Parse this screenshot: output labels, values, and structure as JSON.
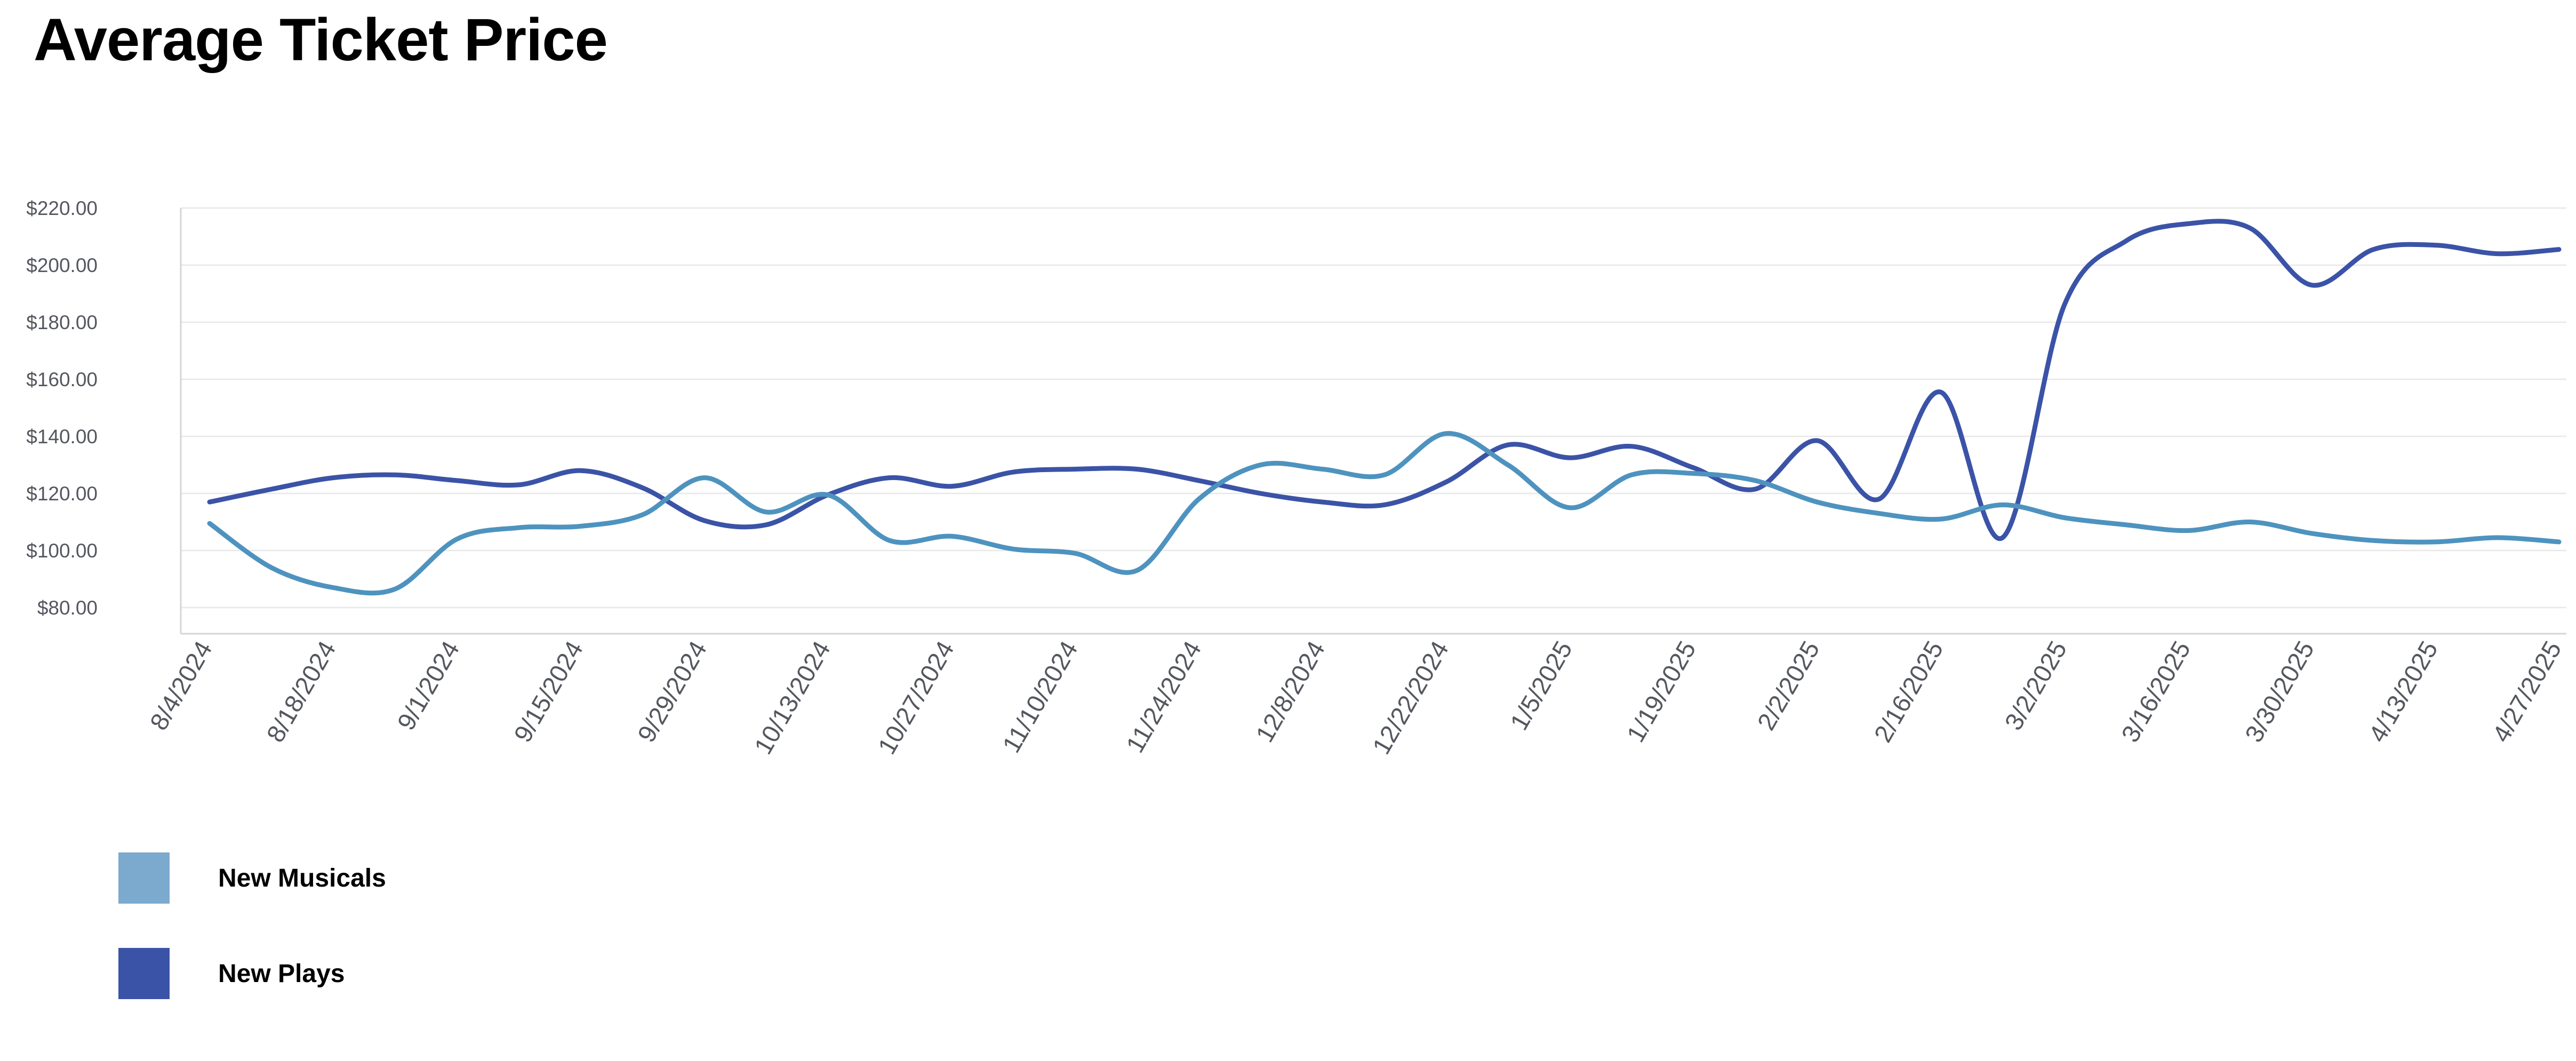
{
  "title": "Average Ticket Price",
  "chart_data": {
    "type": "line",
    "x": [
      "8/4/2024",
      "8/11/2024",
      "8/18/2024",
      "8/25/2024",
      "9/1/2024",
      "9/8/2024",
      "9/15/2024",
      "9/22/2024",
      "9/29/2024",
      "10/6/2024",
      "10/13/2024",
      "10/20/2024",
      "10/27/2024",
      "11/3/2024",
      "11/10/2024",
      "11/17/2024",
      "11/24/2024",
      "12/1/2024",
      "12/8/2024",
      "12/15/2024",
      "12/22/2024",
      "12/29/2024",
      "1/5/2025",
      "1/12/2025",
      "1/19/2025",
      "1/26/2025",
      "2/2/2025",
      "2/9/2025",
      "2/16/2025",
      "2/23/2025",
      "3/2/2025",
      "3/9/2025",
      "3/16/2025",
      "3/23/2025",
      "3/30/2025",
      "4/6/2025",
      "4/13/2025",
      "4/20/2025",
      "4/27/2025"
    ],
    "x_tick_labels": [
      "8/4/2024",
      "8/18/2024",
      "9/1/2024",
      "9/15/2024",
      "9/29/2024",
      "10/13/2024",
      "10/27/2024",
      "11/10/2024",
      "11/24/2024",
      "12/8/2024",
      "12/22/2024",
      "1/5/2025",
      "1/19/2025",
      "2/2/2025",
      "2/16/2025",
      "3/2/2025",
      "3/16/2025",
      "3/30/2025",
      "4/13/2025",
      "4/27/2025"
    ],
    "y_tick_labels": [
      "$220.00",
      "$200.00",
      "$180.00",
      "$160.00",
      "$140.00",
      "$120.00",
      "$100.00",
      "$80.00"
    ],
    "ylim": [
      80,
      220
    ],
    "y_step": 20,
    "grid": true,
    "legend_position": "bottom-left",
    "series": [
      {
        "name": "New Musicals",
        "color": "#4E93BF",
        "values": [
          109.5,
          94,
          87,
          86.5,
          104,
          108,
          108.5,
          112.5,
          125.5,
          113.5,
          119.5,
          103.5,
          105,
          100.5,
          99,
          93,
          118,
          130,
          128.5,
          126.5,
          141,
          130,
          115,
          126.5,
          127,
          124.5,
          117,
          113,
          111,
          116,
          111.5,
          109,
          107,
          110,
          106,
          103.5,
          103,
          104.5,
          103
        ]
      },
      {
        "name": "New Plays",
        "color": "#3B53A7",
        "values": [
          117,
          121.5,
          125.5,
          126.5,
          124.5,
          123,
          128,
          122,
          110.5,
          109,
          119.5,
          125.5,
          122.5,
          127.5,
          128.5,
          128.5,
          124.5,
          120,
          117,
          116,
          124,
          137,
          132.5,
          136.5,
          129,
          121.5,
          138.5,
          118,
          155.5,
          104.5,
          186,
          208.5,
          214.5,
          213,
          193,
          205.5,
          207,
          204,
          205.5
        ]
      }
    ]
  },
  "legend": {
    "items": [
      {
        "label": "New Musicals",
        "color": "#7CA9CE"
      },
      {
        "label": "New Plays",
        "color": "#3B53A7"
      }
    ]
  },
  "style": {
    "grid_color": "#E8E8E8",
    "axis_color": "#D5D5D5",
    "tick_label_color": "#54575E",
    "background": "#FFFFFF"
  }
}
